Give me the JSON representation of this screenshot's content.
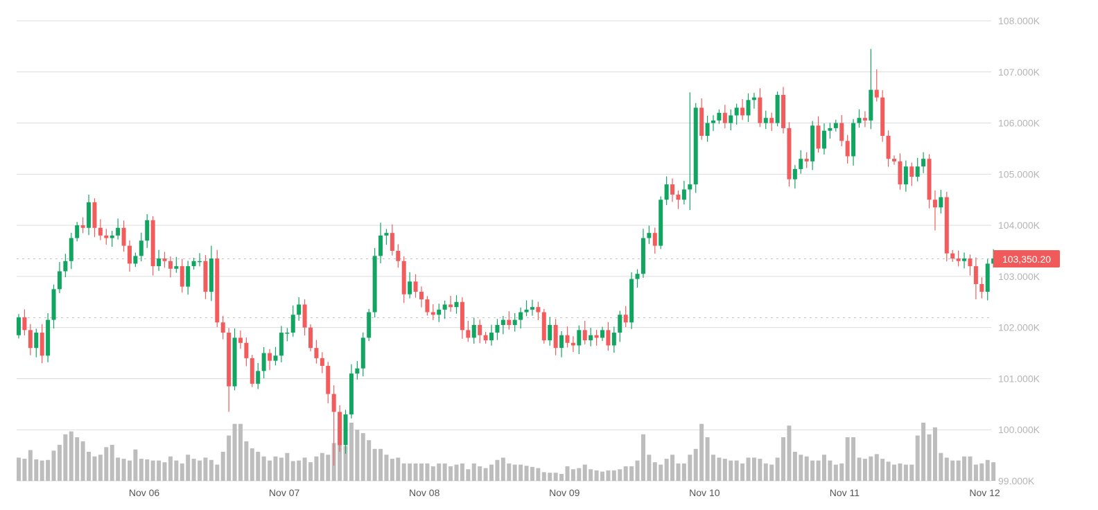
{
  "chart_data": {
    "type": "candlestick",
    "title": "",
    "interval": "1h",
    "ylim": [
      99000,
      108000
    ],
    "y_ticks": [
      "108.000K",
      "107.000K",
      "106.000K",
      "105.000K",
      "104.000K",
      "103.000K",
      "102.000K",
      "101.000K",
      "100.000K",
      "99.000K"
    ],
    "y_tick_values": [
      108,
      107,
      106,
      105,
      104,
      103,
      102,
      101,
      100,
      99
    ],
    "x_ticks": [
      {
        "label": "Nov 06",
        "index": 21.5
      },
      {
        "label": "Nov 07",
        "index": 45.5
      },
      {
        "label": "Nov 08",
        "index": 69.5
      },
      {
        "label": "Nov 09",
        "index": 93.5
      },
      {
        "label": "Nov 10",
        "index": 117.5
      },
      {
        "label": "Nov 11",
        "index": 141.5
      },
      {
        "label": "Nov 12",
        "index": 165.5
      }
    ],
    "price_unit": "thousands USD",
    "first_open": 101.85,
    "closes": [
      102.2,
      101.95,
      101.6,
      101.9,
      101.45,
      102.15,
      102.75,
      103.1,
      103.3,
      103.75,
      104.0,
      103.95,
      104.45,
      103.95,
      103.8,
      103.75,
      103.8,
      103.95,
      103.6,
      103.25,
      103.4,
      103.7,
      104.1,
      103.2,
      103.35,
      103.3,
      103.15,
      103.2,
      102.8,
      103.2,
      103.3,
      103.3,
      102.7,
      103.35,
      102.1,
      101.9,
      100.85,
      101.8,
      101.7,
      101.4,
      100.9,
      101.15,
      101.5,
      101.35,
      101.45,
      101.9,
      101.9,
      102.25,
      102.45,
      102.0,
      101.6,
      101.4,
      101.25,
      100.7,
      100.35,
      99.7,
      100.3,
      101.1,
      101.2,
      101.8,
      102.3,
      103.4,
      103.8,
      103.85,
      103.5,
      103.3,
      102.65,
      102.9,
      102.7,
      102.55,
      102.3,
      102.25,
      102.35,
      102.45,
      102.4,
      102.5,
      101.95,
      101.8,
      102.05,
      101.85,
      101.75,
      101.9,
      102.05,
      102.15,
      102.05,
      102.15,
      102.3,
      102.35,
      102.4,
      102.3,
      101.75,
      102.05,
      101.6,
      101.85,
      101.7,
      101.65,
      101.95,
      101.75,
      101.85,
      101.8,
      101.95,
      101.65,
      101.9,
      102.25,
      102.1,
      102.95,
      103.05,
      103.75,
      103.85,
      103.6,
      104.5,
      104.8,
      104.6,
      104.5,
      104.7,
      104.8,
      106.3,
      105.75,
      106.0,
      106.05,
      106.2,
      106.0,
      106.15,
      106.3,
      106.15,
      106.45,
      106.5,
      106.0,
      106.1,
      106.0,
      106.55,
      105.9,
      104.9,
      105.1,
      105.3,
      105.25,
      105.95,
      105.5,
      105.85,
      105.9,
      106.0,
      105.65,
      105.35,
      106.0,
      106.1,
      106.05,
      106.65,
      106.5,
      105.75,
      105.3,
      105.25,
      104.8,
      105.15,
      104.95,
      105.15,
      105.3,
      104.5,
      104.35,
      104.55,
      103.45,
      103.35,
      103.3,
      103.35,
      103.2,
      102.85,
      102.7,
      103.25,
      103.35
    ],
    "default_wick": 0.13,
    "wick_extremes": [
      {
        "index": 4,
        "low": 101.3
      },
      {
        "index": 12,
        "high": 104.6
      },
      {
        "index": 33,
        "high": 103.6
      },
      {
        "index": 36,
        "low": 100.35
      },
      {
        "index": 54,
        "low": 99.3
      },
      {
        "index": 62,
        "high": 104.05
      },
      {
        "index": 115,
        "high": 106.6
      },
      {
        "index": 115,
        "low": 104.3
      },
      {
        "index": 146,
        "high": 107.45
      },
      {
        "index": 147,
        "high": 107.05
      },
      {
        "index": 157,
        "low": 103.9
      },
      {
        "index": 164,
        "low": 102.55
      }
    ],
    "volume_scale": "relative (0-100)",
    "volumes": [
      40,
      38,
      53,
      37,
      35,
      36,
      52,
      62,
      80,
      85,
      75,
      68,
      50,
      42,
      45,
      58,
      62,
      40,
      38,
      35,
      54,
      38,
      37,
      35,
      35,
      32,
      42,
      35,
      30,
      45,
      38,
      35,
      40,
      36,
      28,
      50,
      78,
      98,
      98,
      68,
      56,
      50,
      42,
      35,
      42,
      40,
      48,
      34,
      35,
      40,
      32,
      42,
      48,
      45,
      65,
      95,
      60,
      100,
      88,
      82,
      70,
      55,
      55,
      45,
      38,
      40,
      30,
      30,
      30,
      30,
      30,
      25,
      30,
      30,
      25,
      28,
      30,
      20,
      30,
      25,
      22,
      28,
      36,
      40,
      30,
      28,
      28,
      26,
      24,
      22,
      15,
      14,
      14,
      12,
      25,
      20,
      22,
      28,
      20,
      18,
      16,
      18,
      18,
      20,
      25,
      25,
      35,
      80,
      45,
      32,
      28,
      38,
      45,
      30,
      30,
      45,
      55,
      98,
      75,
      45,
      40,
      38,
      35,
      35,
      30,
      40,
      40,
      38,
      30,
      28,
      40,
      75,
      95,
      50,
      45,
      42,
      35,
      35,
      45,
      35,
      28,
      30,
      75,
      75,
      40,
      38,
      42,
      46,
      38,
      33,
      28,
      30,
      28,
      28,
      78,
      100,
      80,
      92,
      48,
      40,
      35,
      35,
      42,
      42,
      28,
      30,
      36,
      32
    ],
    "last_price_label": "103,350.20",
    "last_price": 103.35,
    "reference_price": 102.2,
    "colors": {
      "up": "#12a562",
      "down": "#f25c5c",
      "volume": "#bdbdbd",
      "grid": "#dcdcdc",
      "price_tag": "#f05a5a"
    }
  }
}
